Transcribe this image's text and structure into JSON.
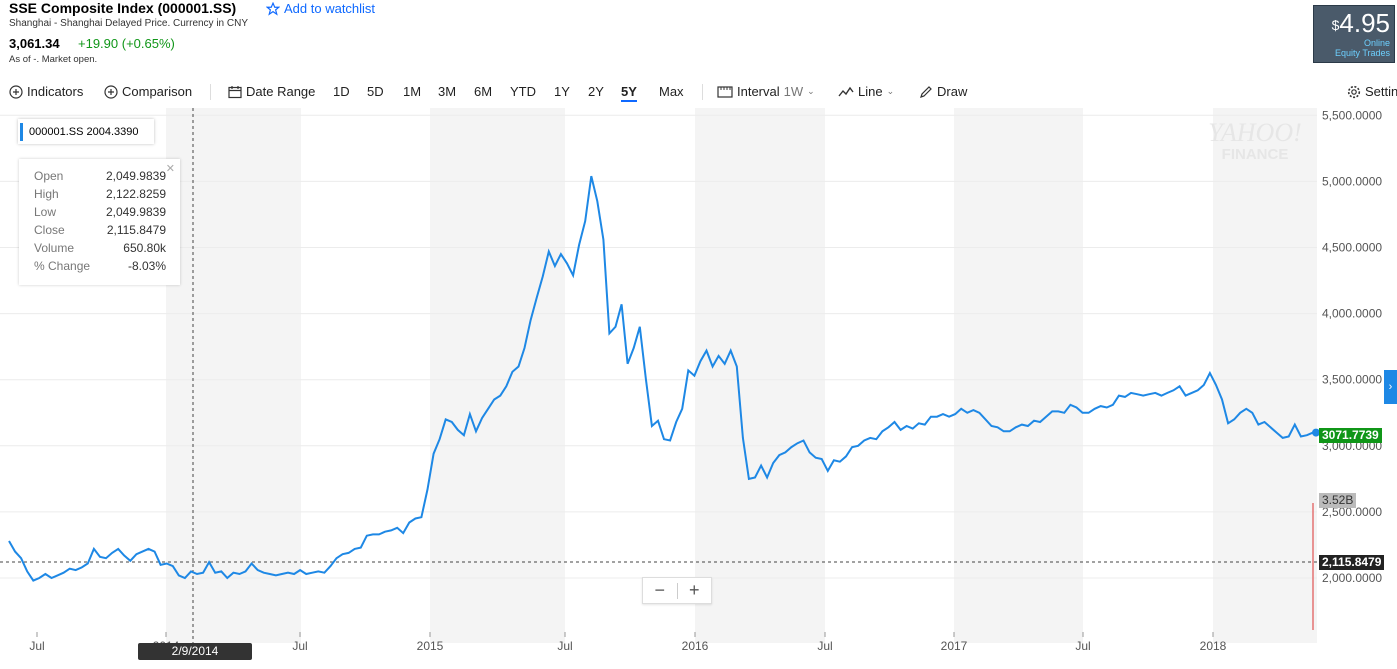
{
  "header": {
    "title": "SSE Composite Index (000001.SS)",
    "watchlist": "Add to watchlist",
    "exchange": "Shanghai - Shanghai Delayed Price. Currency in CNY",
    "price": "3,061.34",
    "change": "+19.90 (+0.65%)",
    "as_of": "As of -. Market open."
  },
  "ad": {
    "dollar": "$",
    "price": "4.95",
    "line1": "Online",
    "line2": "Equity Trades"
  },
  "toolbar": {
    "indicators": "Indicators",
    "comparison": "Comparison",
    "date_range": "Date Range",
    "ranges": [
      "1D",
      "5D",
      "1M",
      "3M",
      "6M",
      "YTD",
      "1Y",
      "2Y",
      "5Y",
      "Max"
    ],
    "selected_range": "5Y",
    "interval": "Interval",
    "interval_value": "1W",
    "line": "Line",
    "draw": "Draw",
    "settings": "Settin"
  },
  "legend": {
    "symbol": "000001.SS",
    "value": "2004.3390"
  },
  "ohlc": {
    "labels": [
      "Open",
      "High",
      "Low",
      "Close",
      "Volume",
      "% Change"
    ],
    "values": [
      "2,049.9839",
      "2,122.8259",
      "2,049.9839",
      "2,115.8479",
      "650.80k",
      "-8.03%"
    ]
  },
  "watermark": {
    "line1": "YAHOO!",
    "line2": "FINANCE"
  },
  "tags": {
    "last": "3071.7739",
    "volume": "3.52B",
    "cross": "2,115.8479",
    "date": "2/9/2014"
  },
  "zoom": {
    "minus": "−",
    "plus": "+"
  },
  "colors": {
    "line": "#1e88e5",
    "up": "#109618",
    "last_tag": "#109618",
    "band": "#f4f4f4"
  },
  "chart_data": {
    "type": "line",
    "series": [
      {
        "name": "000001.SS",
        "values": [
          2280,
          2200,
          2150,
          2050,
          1980,
          2000,
          2030,
          2000,
          2020,
          2040,
          2070,
          2060,
          2080,
          2110,
          2220,
          2160,
          2150,
          2190,
          2220,
          2170,
          2130,
          2180,
          2200,
          2220,
          2200,
          2100,
          2110,
          2090,
          2020,
          2000,
          2050,
          2030,
          2040,
          2120,
          2040,
          2050,
          2000,
          2040,
          2030,
          2050,
          2110,
          2060,
          2040,
          2030,
          2020,
          2030,
          2040,
          2030,
          2060,
          2030,
          2040,
          2050,
          2040,
          2090,
          2150,
          2180,
          2190,
          2220,
          2230,
          2320,
          2330,
          2330,
          2350,
          2360,
          2380,
          2340,
          2420,
          2450,
          2460,
          2670,
          2940,
          3050,
          3200,
          3180,
          3120,
          3080,
          3240,
          3110,
          3210,
          3280,
          3350,
          3380,
          3450,
          3560,
          3600,
          3740,
          3950,
          4120,
          4280,
          4470,
          4360,
          4450,
          4380,
          4290,
          4520,
          4700,
          5040,
          4850,
          4560,
          3850,
          3900,
          4070,
          3620,
          3740,
          3900,
          3510,
          3150,
          3190,
          3050,
          3040,
          3180,
          3280,
          3570,
          3530,
          3640,
          3720,
          3600,
          3680,
          3620,
          3720,
          3600,
          3060,
          2750,
          2760,
          2850,
          2760,
          2870,
          2930,
          2950,
          2990,
          3020,
          3040,
          2950,
          2910,
          2900,
          2810,
          2890,
          2880,
          2920,
          2990,
          3000,
          3040,
          3060,
          3050,
          3110,
          3140,
          3180,
          3120,
          3150,
          3130,
          3170,
          3160,
          3220,
          3220,
          3240,
          3220,
          3240,
          3280,
          3250,
          3270,
          3250,
          3200,
          3150,
          3140,
          3110,
          3110,
          3140,
          3160,
          3150,
          3190,
          3180,
          3220,
          3260,
          3260,
          3250,
          3310,
          3290,
          3250,
          3250,
          3280,
          3300,
          3290,
          3310,
          3380,
          3370,
          3400,
          3390,
          3380,
          3390,
          3400,
          3380,
          3400,
          3420,
          3450,
          3380,
          3400,
          3420,
          3460,
          3550,
          3460,
          3350,
          3170,
          3200,
          3250,
          3280,
          3250,
          3160,
          3180,
          3140,
          3100,
          3060,
          3070,
          3160,
          3070,
          3080,
          3100
        ]
      }
    ],
    "x_labels": [
      "Jul",
      "2014",
      "Jul",
      "2015",
      "Jul",
      "2016",
      "Jul",
      "2017",
      "Jul",
      "2018"
    ],
    "y_ticks": [
      "5,500.0000",
      "5,000.0000",
      "4,500.0000",
      "4,000.0000",
      "3,500.0000",
      "3,000.0000",
      "2,500.0000",
      "2,000.0000"
    ],
    "ylim": [
      1600,
      5600
    ]
  }
}
